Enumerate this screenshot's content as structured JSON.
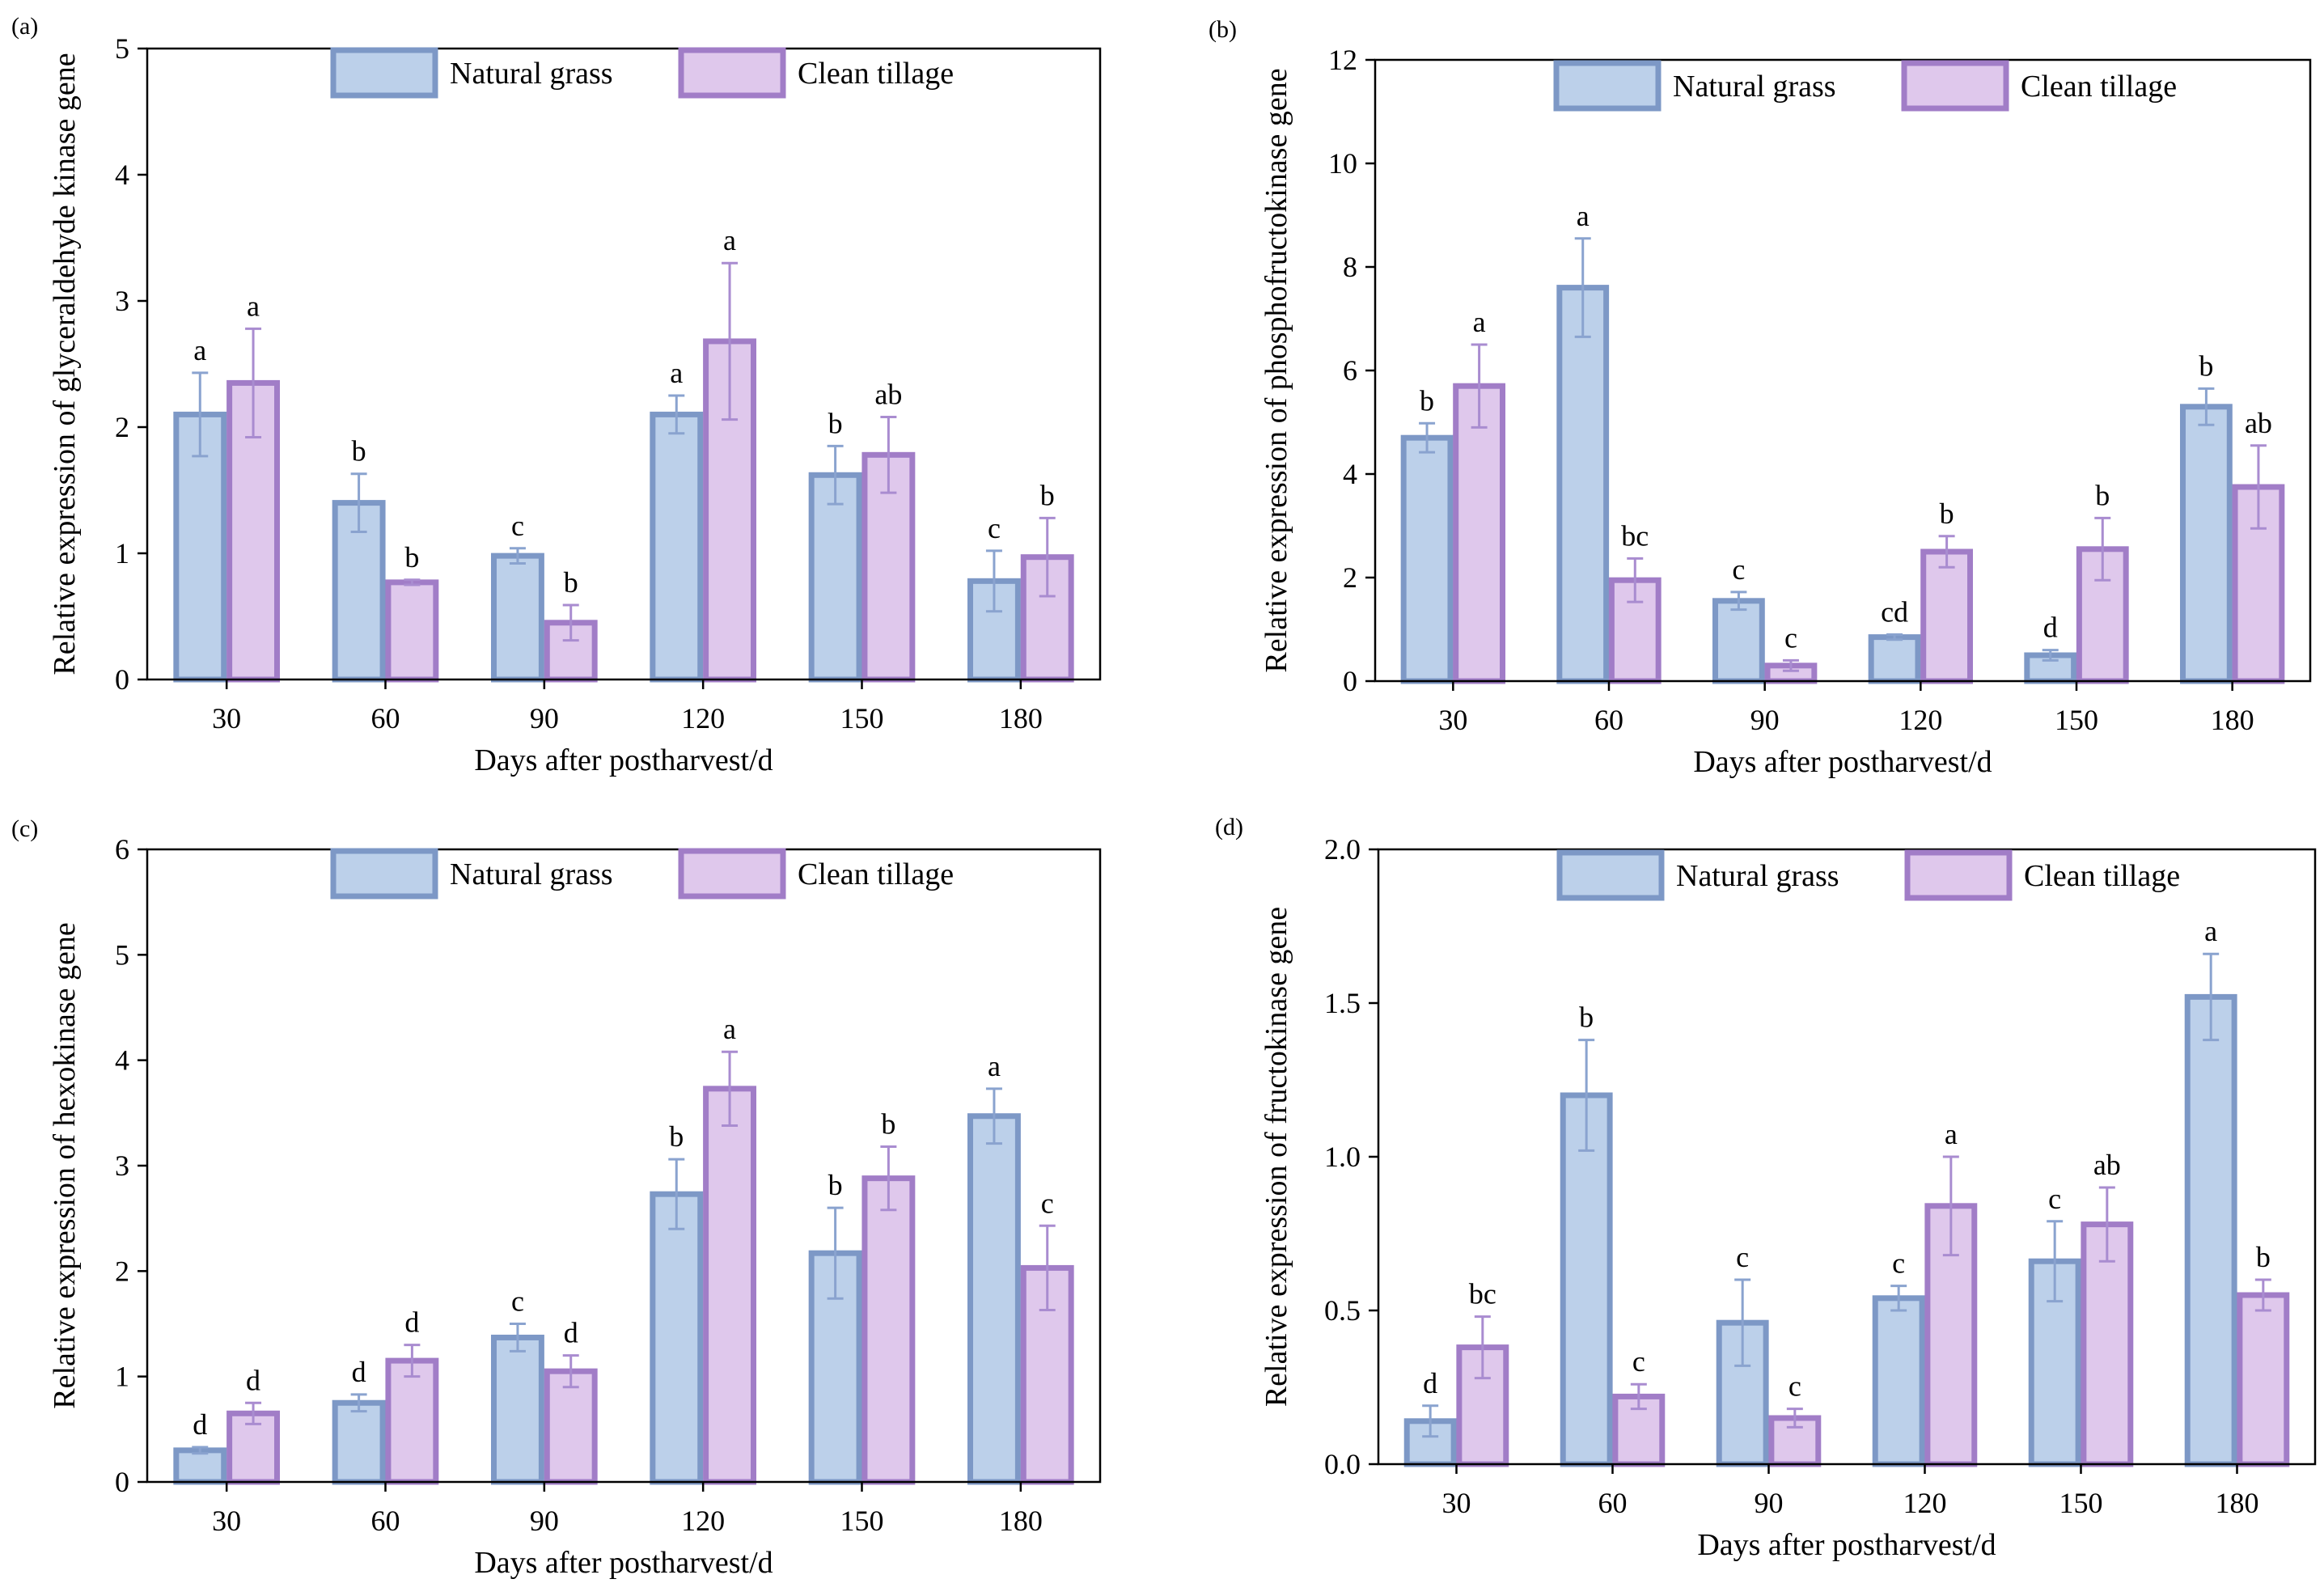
{
  "colors": {
    "natural_fill": "#bcd0ea",
    "natural_stroke": "#7d98c6",
    "natural_err": "#8aa3cf",
    "clean_fill": "#dfc8ec",
    "clean_stroke": "#a17dc7",
    "clean_err": "#a98cd0"
  },
  "chart_data": [
    {
      "type": "bar",
      "panel_label": "(a)",
      "title": "",
      "xlabel": "Days after postharvest/d",
      "ylabel": "Relative expression of glyceraldehyde kinase gene",
      "categories": [
        "30",
        "60",
        "90",
        "120",
        "150",
        "180"
      ],
      "ylim": [
        0,
        5
      ],
      "yticks": [
        "0",
        "1",
        "2",
        "3",
        "4",
        "5"
      ],
      "yticks_values": [
        0,
        1,
        2,
        3,
        4,
        5
      ],
      "legend": [
        "Natural grass",
        "Clean tillage"
      ],
      "series": [
        {
          "name": "Natural grass",
          "values": [
            2.1,
            1.4,
            0.98,
            2.1,
            1.62,
            0.78
          ],
          "errors": [
            0.33,
            0.23,
            0.06,
            0.15,
            0.23,
            0.24
          ],
          "letters": [
            "a",
            "b",
            "c",
            "a",
            "b",
            "c"
          ]
        },
        {
          "name": "Clean tillage",
          "values": [
            2.35,
            0.77,
            0.45,
            2.68,
            1.78,
            0.97
          ],
          "errors": [
            0.43,
            0.02,
            0.14,
            0.62,
            0.3,
            0.31
          ],
          "letters": [
            "a",
            "b",
            "b",
            "a",
            "ab",
            "b"
          ]
        }
      ]
    },
    {
      "type": "bar",
      "panel_label": "(b)",
      "title": "",
      "xlabel": "Days after postharvest/d",
      "ylabel": "Relative expression of phosphofructokinase gene",
      "categories": [
        "30",
        "60",
        "90",
        "120",
        "150",
        "180"
      ],
      "ylim": [
        0,
        12
      ],
      "yticks": [
        "0",
        "2",
        "4",
        "6",
        "8",
        "10",
        "12"
      ],
      "yticks_values": [
        0,
        2,
        4,
        6,
        8,
        10,
        12
      ],
      "legend": [
        "Natural grass",
        "Clean tillage"
      ],
      "series": [
        {
          "name": "Natural grass",
          "values": [
            4.7,
            7.6,
            1.55,
            0.85,
            0.5,
            5.3
          ],
          "errors": [
            0.28,
            0.95,
            0.17,
            0.05,
            0.1,
            0.35
          ],
          "letters": [
            "b",
            "a",
            "c",
            "cd",
            "d",
            "b"
          ]
        },
        {
          "name": "Clean tillage",
          "values": [
            5.7,
            1.95,
            0.3,
            2.5,
            2.55,
            3.75
          ],
          "errors": [
            0.8,
            0.42,
            0.1,
            0.3,
            0.6,
            0.8
          ],
          "letters": [
            "a",
            "bc",
            "c",
            "b",
            "b",
            "ab"
          ]
        }
      ]
    },
    {
      "type": "bar",
      "panel_label": "(c)",
      "title": "",
      "xlabel": "Days after postharvest/d",
      "ylabel": "Relative expression of hexokinase gene",
      "categories": [
        "30",
        "60",
        "90",
        "120",
        "150",
        "180"
      ],
      "ylim": [
        0,
        6
      ],
      "yticks": [
        "0",
        "1",
        "2",
        "3",
        "4",
        "5",
        "6"
      ],
      "yticks_values": [
        0,
        1,
        2,
        3,
        4,
        5,
        6
      ],
      "legend": [
        "Natural grass",
        "Clean tillage"
      ],
      "series": [
        {
          "name": "Natural grass",
          "values": [
            0.3,
            0.75,
            1.37,
            2.73,
            2.17,
            3.47
          ],
          "errors": [
            0.03,
            0.08,
            0.13,
            0.33,
            0.43,
            0.26
          ],
          "letters": [
            "d",
            "d",
            "c",
            "b",
            "b",
            "a"
          ]
        },
        {
          "name": "Clean tillage",
          "values": [
            0.65,
            1.15,
            1.05,
            3.73,
            2.88,
            2.03
          ],
          "errors": [
            0.1,
            0.15,
            0.15,
            0.35,
            0.3,
            0.4
          ],
          "letters": [
            "d",
            "d",
            "d",
            "a",
            "b",
            "c"
          ]
        }
      ]
    },
    {
      "type": "bar",
      "panel_label": "(d)",
      "title": "",
      "xlabel": "Days after postharvest/d",
      "ylabel": "Relative expression of fructokinase gene",
      "categories": [
        "30",
        "60",
        "90",
        "120",
        "150",
        "180"
      ],
      "ylim": [
        0,
        2.0
      ],
      "yticks": [
        "0.0",
        "0.5",
        "1.0",
        "1.5",
        "2.0"
      ],
      "yticks_values": [
        0,
        0.5,
        1.0,
        1.5,
        2.0
      ],
      "legend": [
        "Natural grass",
        "Clean tillage"
      ],
      "series": [
        {
          "name": "Natural grass",
          "values": [
            0.14,
            1.2,
            0.46,
            0.54,
            0.66,
            1.52
          ],
          "errors": [
            0.05,
            0.18,
            0.14,
            0.04,
            0.13,
            0.14
          ],
          "letters": [
            "d",
            "b",
            "c",
            "c",
            "c",
            "a"
          ]
        },
        {
          "name": "Clean tillage",
          "values": [
            0.38,
            0.22,
            0.15,
            0.84,
            0.78,
            0.55
          ],
          "errors": [
            0.1,
            0.04,
            0.03,
            0.16,
            0.12,
            0.05
          ],
          "letters": [
            "bc",
            "c",
            "c",
            "a",
            "ab",
            "b"
          ]
        }
      ]
    }
  ]
}
